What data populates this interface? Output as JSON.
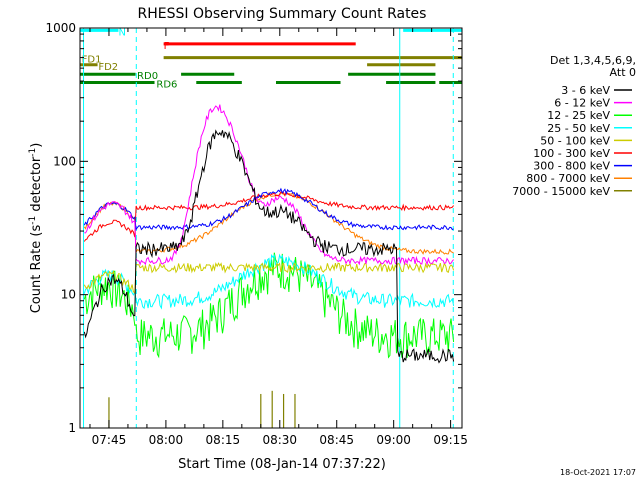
{
  "chart_data": {
    "type": "line",
    "title": "RHESSI Observing Summary Count Rates",
    "xlabel": "Start Time (08-Jan-14 07:37:22)",
    "ylabel_main": "Count Rate (s",
    "ylabel_sup1": "-1",
    "ylabel_mid": " detector",
    "ylabel_sup2": "-1",
    "ylabel_end": ")",
    "yscale": "log",
    "ylim": [
      1,
      1000
    ],
    "xlim_min": [
      457.37,
      558
    ],
    "x_ticks": [
      {
        "min": 465,
        "label": "07:45"
      },
      {
        "min": 480,
        "label": "08:00"
      },
      {
        "min": 495,
        "label": "08:15"
      },
      {
        "min": 510,
        "label": "08:30"
      },
      {
        "min": 525,
        "label": "08:45"
      },
      {
        "min": 540,
        "label": "09:00"
      },
      {
        "min": 555,
        "label": "09:15"
      }
    ],
    "y_ticks": [
      {
        "value": 1,
        "label": "1"
      },
      {
        "value": 10,
        "label": "10"
      },
      {
        "value": 100,
        "label": "100"
      },
      {
        "value": 1000,
        "label": "1000"
      }
    ],
    "legend_header": [
      "Det 1,3,4,5,6,9,",
      "Att 0"
    ],
    "series": [
      {
        "name": "3 - 6 keV",
        "color": "#000000"
      },
      {
        "name": "6 - 12 keV",
        "color": "#ff00ff"
      },
      {
        "name": "12 - 25 keV",
        "color": "#00ff00"
      },
      {
        "name": "25 - 50 keV",
        "color": "#00ffff"
      },
      {
        "name": "50 - 100 keV",
        "color": "#cccc00"
      },
      {
        "name": "100 - 300 keV",
        "color": "#ff0000"
      },
      {
        "name": "300 - 800 keV",
        "color": "#0000ff"
      },
      {
        "name": "800 - 7000 keV",
        "color": "#ff8000"
      },
      {
        "name": "7000 - 15000 keV",
        "color": "#808000"
      }
    ],
    "flag_bars": [
      {
        "label": "N",
        "color": "#00ffff",
        "level": 960,
        "segments": [
          [
            457.4,
            467.5
          ],
          [
            542.5,
            558
          ]
        ],
        "label_at": 467.5
      },
      {
        "label": "F",
        "color": "#ff0000",
        "level": 760,
        "segments": [
          [
            479.4,
            530
          ]
        ],
        "label_at": 479.4
      },
      {
        "label": "FD1",
        "color": "#808000",
        "level": 600,
        "segments": [
          [
            479.4,
            558
          ]
        ],
        "label_at": 457.8
      },
      {
        "label": "FD2",
        "color": "#808000",
        "level": 530,
        "segments": [
          [
            457.4,
            462
          ],
          [
            533,
            551
          ]
        ],
        "label_at": 462.2
      },
      {
        "label": "RD0",
        "color": "#008000",
        "level": 450,
        "segments": [
          [
            457.4,
            472
          ],
          [
            484,
            498
          ],
          [
            528,
            551
          ]
        ],
        "label_at": 472.4
      },
      {
        "label": "RD6",
        "color": "#008000",
        "level": 390,
        "segments": [
          [
            457.4,
            477
          ],
          [
            488,
            500
          ],
          [
            509,
            526
          ],
          [
            538,
            551
          ],
          [
            552,
            558
          ]
        ],
        "label_at": 477.5
      }
    ],
    "vertical_lines": [
      {
        "min": 458.3,
        "color": "#00ffff",
        "style": "solid"
      },
      {
        "min": 472.2,
        "color": "#00ffff",
        "style": "dashed"
      },
      {
        "min": 541.6,
        "color": "#00ffff",
        "style": "solid"
      },
      {
        "min": 555.7,
        "color": "#00ffff",
        "style": "dashed"
      }
    ]
  },
  "footer": {
    "timestamp": "18-Oct-2021 17:07"
  }
}
